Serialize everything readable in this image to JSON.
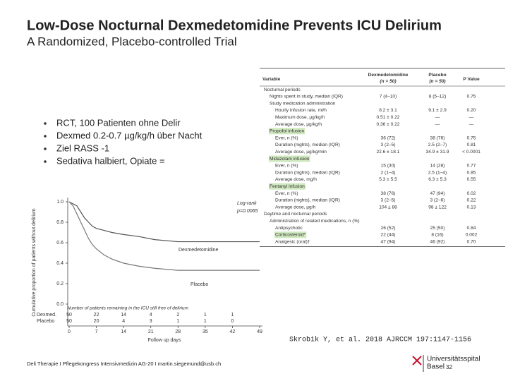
{
  "header": {
    "title": "Low-Dose Nocturnal Dexmedetomidine Prevents ICU Delirium",
    "subtitle": "A Randomized, Placebo-controlled Trial"
  },
  "bullets": [
    "RCT, 100 Patienten ohne Delir",
    "Dexmed 0.2-0.7 µg/kg/h über Nacht",
    "Ziel RASS -1",
    "Sedativa halbiert, Opiate ="
  ],
  "table": {
    "columns": [
      {
        "label": "Variable"
      },
      {
        "label": "Dexmedetomidine",
        "sub": "(n = 50)"
      },
      {
        "label": "Placebo",
        "sub": "(n = 50)"
      },
      {
        "label": "P Value"
      }
    ],
    "sections": [
      {
        "label": "Nocturnal periods",
        "items": [
          {
            "label": "Nights spent in study, median (IQR)",
            "cells": [
              "7 (4–10)",
              "8 (5–12)",
              "0.75"
            ]
          },
          {
            "label": "Study medication administration",
            "items": [
              {
                "label": "Hourly infusion rate, ml/h",
                "cells": [
                  "8.2 ± 3.1",
                  "9.1 ± 2.9",
                  "0.20"
                ]
              },
              {
                "label": "Maximum dose, µg/kg/h",
                "cells": [
                  "0.51 ± 0.22",
                  "—",
                  "—"
                ]
              },
              {
                "label": "Average dose, µg/kg/h",
                "cells": [
                  "0.36 ± 0.22",
                  "—",
                  "—"
                ]
              }
            ]
          },
          {
            "label": "Propofol infusion",
            "highlight": true,
            "items": [
              {
                "label": "Ever, n (%)",
                "cells": [
                  "36 (72)",
                  "38 (76)",
                  "0.75"
                ]
              },
              {
                "label": "Duration (nights), median (IQR)",
                "cells": [
                  "3 (2–5)",
                  "2.5 (2–7)",
                  "0.81"
                ]
              },
              {
                "label": "Average dose, µg/kg/min",
                "cells": [
                  "22.6 ± 18.1",
                  "34.9 ± 31.9",
                  "< 0.0001"
                ]
              }
            ]
          },
          {
            "label": "Midazolam infusion",
            "highlight": true,
            "items": [
              {
                "label": "Ever, n (%)",
                "cells": [
                  "15 (30)",
                  "14 (28)",
                  "0.77"
                ]
              },
              {
                "label": "Duration (nights), median (IQR)",
                "cells": [
                  "2 (1–4)",
                  "2.5 (1–4)",
                  "0.85"
                ]
              },
              {
                "label": "Average dose, mg/h",
                "cells": [
                  "5.3 ± 5.5",
                  "6.3 ± 5.3",
                  "0.55"
                ]
              }
            ]
          },
          {
            "label": "Fentanyl infusion",
            "highlight": true,
            "items": [
              {
                "label": "Ever, n (%)",
                "cells": [
                  "38 (76)",
                  "47 (94)",
                  "0.02"
                ]
              },
              {
                "label": "Duration (nights), median (IQR)",
                "cells": [
                  "3 (2–5)",
                  "3 (2–6)",
                  "0.22"
                ]
              },
              {
                "label": "Average dose, µg/h",
                "cells": [
                  "104 ± 88",
                  "98 ± 122",
                  "0.13"
                ]
              }
            ]
          }
        ]
      },
      {
        "label": "Daytime and nocturnal periods",
        "items": [
          {
            "label": "Administration of related medications, n (%)",
            "items": [
              {
                "label": "Antipsychotic",
                "cells": [
                  "26 (52)",
                  "25 (50)",
                  "0.84"
                ]
              },
              {
                "label": "Corticosteroid*",
                "highlight": true,
                "cells": [
                  "22 (44)",
                  "8 (16)",
                  "0.002"
                ]
              },
              {
                "label": "Analgesic (oral)†",
                "cells": [
                  "47 (94)",
                  "46 (92)",
                  "0.70"
                ]
              }
            ]
          }
        ]
      }
    ]
  },
  "km_chart": {
    "y_label": "Cumulative proportion of patients without delirium",
    "x_label": "Follow up days",
    "logrank": [
      "Log-rank",
      "p=0.0065"
    ],
    "risk_title": "Number of patients remaining in the ICU still free of delirium",
    "xlim": [
      0,
      49
    ],
    "ylim": [
      0,
      1
    ],
    "xticks": [
      0,
      7,
      14,
      21,
      28,
      35,
      42,
      49
    ],
    "yticks": [
      {
        "value": 1,
        "label": "1.0"
      },
      {
        "value": 0.8,
        "label": "0.8"
      },
      {
        "value": 0.6,
        "label": "0.6"
      },
      {
        "value": 0.4,
        "label": "0.4"
      },
      {
        "value": 0.2,
        "label": "0.2"
      },
      {
        "value": 0,
        "label": "0.0"
      }
    ],
    "series": [
      {
        "name": "Dexmedetomidine",
        "risk_label": "Dexmed.",
        "color": "#555555",
        "x": [
          0,
          2,
          3,
          4,
          5,
          6,
          7,
          9,
          11,
          14,
          18,
          22,
          28,
          49
        ],
        "y": [
          1,
          0.96,
          0.9,
          0.84,
          0.8,
          0.76,
          0.74,
          0.72,
          0.7,
          0.68,
          0.66,
          0.63,
          0.61,
          0.61
        ],
        "at_risk": [
          50,
          22,
          14,
          4,
          2,
          1,
          1
        ]
      },
      {
        "name": "Placebo",
        "risk_label": "Placebo",
        "color": "#777777",
        "x": [
          0,
          1,
          2,
          3,
          4,
          5,
          6,
          7,
          9,
          11,
          14,
          18,
          22,
          28,
          49
        ],
        "y": [
          1,
          0.96,
          0.88,
          0.8,
          0.72,
          0.64,
          0.58,
          0.54,
          0.48,
          0.44,
          0.4,
          0.37,
          0.35,
          0.33,
          0.33
        ],
        "at_risk": [
          50,
          20,
          4,
          3,
          1,
          1,
          0
        ]
      }
    ]
  },
  "citation": "Skrobik Y, et al. 2018 AJRCCM 197:1147-1156",
  "footer": {
    "text": "Deli Therapie I Pflegekongress Intensivmedizin AG-20 I martin.siegemund@usb.ch",
    "logo": [
      "Universitätsspital",
      "Basel"
    ],
    "page": "32"
  }
}
